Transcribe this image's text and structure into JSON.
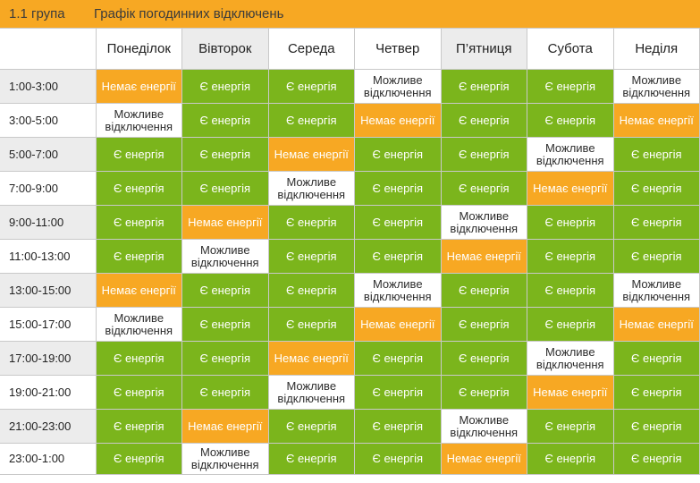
{
  "header": {
    "group": "1.1 група",
    "title": "Графік погодинних відключень"
  },
  "days": [
    "Понеділок",
    "Вівторок",
    "Середа",
    "Четвер",
    "П’ятниця",
    "Субота",
    "Неділя"
  ],
  "labels": {
    "on": "Є енергія",
    "off": "Немає енергії",
    "maybe": "Можливе відключення"
  },
  "colors": {
    "on": "#7bb51c",
    "off": "#f7a823",
    "maybe": "#ffffff",
    "header": "#f7a823"
  },
  "rows": [
    {
      "time": "1:00-3:00",
      "cells": [
        "off",
        "on",
        "on",
        "maybe",
        "on",
        "on",
        "maybe"
      ]
    },
    {
      "time": "3:00-5:00",
      "cells": [
        "maybe",
        "on",
        "on",
        "off",
        "on",
        "on",
        "off"
      ]
    },
    {
      "time": "5:00-7:00",
      "cells": [
        "on",
        "on",
        "off",
        "on",
        "on",
        "maybe",
        "on"
      ]
    },
    {
      "time": "7:00-9:00",
      "cells": [
        "on",
        "on",
        "maybe",
        "on",
        "on",
        "off",
        "on"
      ]
    },
    {
      "time": "9:00-11:00",
      "cells": [
        "on",
        "off",
        "on",
        "on",
        "maybe",
        "on",
        "on"
      ]
    },
    {
      "time": "11:00-13:00",
      "cells": [
        "on",
        "maybe",
        "on",
        "on",
        "off",
        "on",
        "on"
      ]
    },
    {
      "time": "13:00-15:00",
      "cells": [
        "off",
        "on",
        "on",
        "maybe",
        "on",
        "on",
        "maybe"
      ]
    },
    {
      "time": "15:00-17:00",
      "cells": [
        "maybe",
        "on",
        "on",
        "off",
        "on",
        "on",
        "off"
      ]
    },
    {
      "time": "17:00-19:00",
      "cells": [
        "on",
        "on",
        "off",
        "on",
        "on",
        "maybe",
        "on"
      ]
    },
    {
      "time": "19:00-21:00",
      "cells": [
        "on",
        "on",
        "maybe",
        "on",
        "on",
        "off",
        "on"
      ]
    },
    {
      "time": "21:00-23:00",
      "cells": [
        "on",
        "off",
        "on",
        "on",
        "maybe",
        "on",
        "on"
      ]
    },
    {
      "time": "23:00-1:00",
      "cells": [
        "on",
        "maybe",
        "on",
        "on",
        "off",
        "on",
        "on"
      ]
    }
  ]
}
